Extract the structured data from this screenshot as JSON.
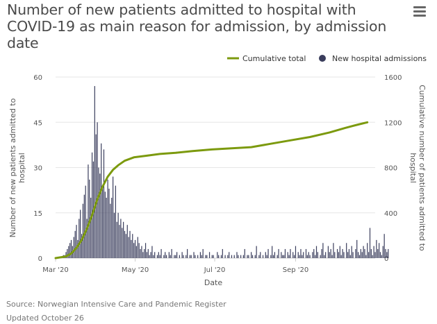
{
  "header": {
    "title": "Number of new patients admitted to hospital with COVID-19 as main reason for admission, by admission date",
    "menu_icon": "hamburger-menu-icon"
  },
  "footer": {
    "source": "Source: Norwegian Intensive Care and Pandemic Register",
    "updated": "Updated October 26"
  },
  "colors": {
    "bars": "#3a3d5c",
    "line": "#7c9a0e",
    "grid": "#e6e6e6",
    "axis_text": "#555555"
  },
  "chart_data": {
    "type": "bar+line",
    "xlabel": "Date",
    "ylabel_left": "Number of new patients admitted to hospital",
    "ylabel_right": "Cumulative number of patients admitted to hospital",
    "ylim_left": [
      0,
      60
    ],
    "ylim_right": [
      0,
      1600
    ],
    "yticks_left": [
      0,
      15,
      30,
      45,
      60
    ],
    "yticks_right": [
      0,
      400,
      800,
      1200,
      1600
    ],
    "x_start": "2020-03-01",
    "x_end": "2020-10-26",
    "xticks": [
      {
        "label": "Mar '20",
        "day": 0
      },
      {
        "label": "May '20",
        "day": 61
      },
      {
        "label": "Jul '20",
        "day": 122
      },
      {
        "label": "Sep '20",
        "day": 184
      }
    ],
    "legend": {
      "position": "top-right",
      "entries": [
        "Cumulative total",
        "New hospital admissions"
      ]
    },
    "series": [
      {
        "name": "New hospital admissions",
        "type": "bar",
        "start_day": 0,
        "values": [
          0,
          0,
          0,
          0,
          0,
          0,
          1,
          1,
          2,
          3,
          4,
          5,
          6,
          4,
          7,
          9,
          11,
          6,
          13,
          16,
          8,
          18,
          21,
          24,
          13,
          31,
          26,
          20,
          35,
          32,
          57,
          41,
          45,
          30,
          28,
          38,
          24,
          36,
          22,
          20,
          26,
          23,
          18,
          20,
          27,
          15,
          24,
          12,
          15,
          11,
          13,
          10,
          12,
          9,
          8,
          11,
          7,
          9,
          6,
          8,
          5,
          6,
          4,
          7,
          5,
          3,
          4,
          2,
          3,
          5,
          2,
          3,
          1,
          2,
          4,
          1,
          2,
          0,
          1,
          2,
          1,
          3,
          0,
          1,
          2,
          1,
          0,
          2,
          1,
          3,
          0,
          1,
          1,
          2,
          0,
          1,
          0,
          2,
          1,
          0,
          1,
          3,
          0,
          1,
          1,
          0,
          2,
          1,
          0,
          1,
          0,
          2,
          1,
          3,
          0,
          1,
          1,
          0,
          2,
          0,
          1,
          1,
          0,
          0,
          2,
          1,
          0,
          1,
          3,
          0,
          1,
          0,
          1,
          2,
          0,
          1,
          0,
          1,
          0,
          2,
          1,
          0,
          1,
          0,
          1,
          3,
          0,
          1,
          1,
          0,
          2,
          1,
          0,
          1,
          4,
          0,
          1,
          2,
          0,
          1,
          0,
          2,
          1,
          3,
          0,
          1,
          4,
          1,
          2,
          0,
          1,
          3,
          0,
          2,
          1,
          1,
          3,
          0,
          2,
          1,
          3,
          0,
          2,
          1,
          4,
          0,
          2,
          1,
          3,
          1,
          2,
          0,
          3,
          1,
          2,
          1,
          0,
          2,
          3,
          1,
          4,
          2,
          0,
          1,
          3,
          5,
          1,
          2,
          0,
          4,
          2,
          3,
          1,
          5,
          2,
          0,
          3,
          2,
          4,
          1,
          3,
          2,
          0,
          5,
          2,
          3,
          1,
          4,
          2,
          0,
          3,
          6,
          2,
          1,
          3,
          2,
          4,
          3,
          1,
          5,
          2,
          10,
          3,
          1,
          4,
          2,
          6,
          3,
          5,
          2,
          1,
          4,
          8,
          3,
          2,
          3
        ]
      },
      {
        "name": "Cumulative total",
        "type": "line",
        "points": [
          {
            "day": 0,
            "value": 0
          },
          {
            "day": 8,
            "value": 15
          },
          {
            "day": 12,
            "value": 40
          },
          {
            "day": 16,
            "value": 90
          },
          {
            "day": 20,
            "value": 160
          },
          {
            "day": 24,
            "value": 260
          },
          {
            "day": 28,
            "value": 380
          },
          {
            "day": 32,
            "value": 520
          },
          {
            "day": 36,
            "value": 630
          },
          {
            "day": 40,
            "value": 720
          },
          {
            "day": 44,
            "value": 780
          },
          {
            "day": 48,
            "value": 820
          },
          {
            "day": 53,
            "value": 860
          },
          {
            "day": 60,
            "value": 890
          },
          {
            "day": 70,
            "value": 905
          },
          {
            "day": 80,
            "value": 920
          },
          {
            "day": 92,
            "value": 930
          },
          {
            "day": 105,
            "value": 945
          },
          {
            "day": 120,
            "value": 960
          },
          {
            "day": 135,
            "value": 970
          },
          {
            "day": 150,
            "value": 980
          },
          {
            "day": 165,
            "value": 1010
          },
          {
            "day": 180,
            "value": 1040
          },
          {
            "day": 195,
            "value": 1070
          },
          {
            "day": 210,
            "value": 1110
          },
          {
            "day": 222,
            "value": 1150
          },
          {
            "day": 232,
            "value": 1180
          },
          {
            "day": 239,
            "value": 1200
          }
        ]
      }
    ]
  }
}
